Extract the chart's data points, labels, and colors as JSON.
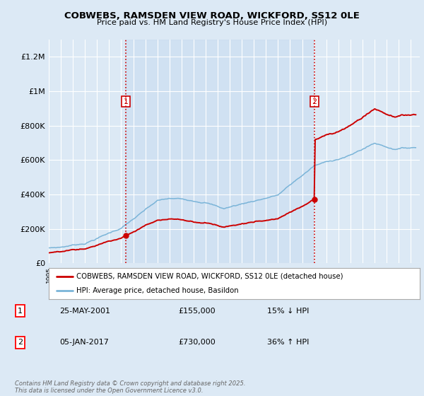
{
  "title": "COBWEBS, RAMSDEN VIEW ROAD, WICKFORD, SS12 0LE",
  "subtitle": "Price paid vs. HM Land Registry's House Price Index (HPI)",
  "bg_color": "#dce9f5",
  "shade_color": "#c8dcf0",
  "ylim": [
    0,
    1300000
  ],
  "yticks": [
    0,
    200000,
    400000,
    600000,
    800000,
    1000000,
    1200000
  ],
  "ytick_labels": [
    "£0",
    "£200K",
    "£400K",
    "£600K",
    "£800K",
    "£1M",
    "£1.2M"
  ],
  "sale1_year": 2001.388,
  "sale1_price": 155000,
  "sale2_year": 2017.014,
  "sale2_price": 730000,
  "vline_color": "#cc0000",
  "red_line_color": "#cc0000",
  "blue_line_color": "#7ab4d8",
  "legend_entries": [
    "COBWEBS, RAMSDEN VIEW ROAD, WICKFORD, SS12 0LE (detached house)",
    "HPI: Average price, detached house, Basildon"
  ],
  "table_entries": [
    {
      "num": "1",
      "date": "25-MAY-2001",
      "price": "£155,000",
      "pct": "15% ↓ HPI"
    },
    {
      "num": "2",
      "date": "05-JAN-2017",
      "price": "£730,000",
      "pct": "36% ↑ HPI"
    }
  ],
  "footer": "Contains HM Land Registry data © Crown copyright and database right 2025.\nThis data is licensed under the Open Government Licence v3.0.",
  "x_start_year": 1995,
  "x_end_year": 2025
}
